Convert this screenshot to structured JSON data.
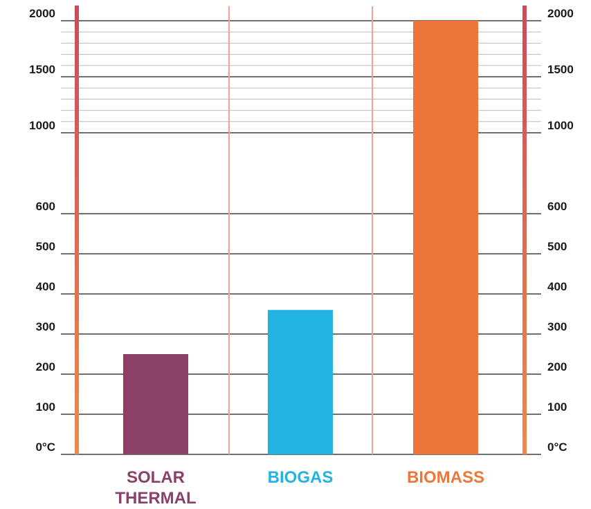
{
  "chart_data": {
    "type": "bar",
    "categories": [
      "SOLAR THERMAL",
      "BIOGAS",
      "BIOMASS"
    ],
    "category_lines": [
      [
        "SOLAR",
        "THERMAL"
      ],
      [
        "BIOGAS"
      ],
      [
        "BIOMASS"
      ]
    ],
    "values": [
      250,
      360,
      2000
    ],
    "bar_colors": [
      "#8b4067",
      "#23b3e3",
      "#ed763b"
    ],
    "label_colors": [
      "#8b4067",
      "#23b3e3",
      "#ed763b"
    ],
    "y_ticks": [
      0,
      100,
      200,
      300,
      400,
      500,
      600,
      1000,
      1500,
      2000
    ],
    "y_tick_labels": [
      "0°C",
      "100",
      "200",
      "300",
      "400",
      "500",
      "600",
      "1000",
      "1500",
      "2000"
    ],
    "minor_ticks": [
      1100,
      1200,
      1300,
      1400,
      1600,
      1700,
      1800,
      1900
    ],
    "scale": "broken (linear 0–600, compressed 600–1000, linear 1000–2000)",
    "ylim": [
      0,
      2000
    ],
    "axes_both_sides": true,
    "grid": true,
    "thermometer_colors": {
      "top": "#cc4a5c",
      "bottom": "#ed8a4a"
    },
    "divider_color": "#f0a58a",
    "grid_color": "#1a1a1a",
    "minor_grid_color": "#bbbbbb"
  }
}
